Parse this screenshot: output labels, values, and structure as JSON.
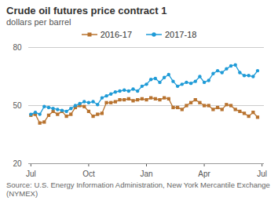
{
  "chart_data": {
    "type": "line",
    "title": "Crude oil futures price contract 1",
    "subtitle": "dollars per barrel",
    "caption": "Source: U.S. Energy Information Administration, New York Mercantile Exchange (NYMEX)",
    "x": [
      "Jul",
      null,
      null,
      null,
      null,
      null,
      null,
      null,
      null,
      null,
      null,
      null,
      null,
      "Oct",
      null,
      null,
      null,
      null,
      null,
      null,
      null,
      null,
      null,
      null,
      null,
      null,
      "Jan",
      null,
      null,
      null,
      null,
      null,
      null,
      null,
      null,
      null,
      null,
      null,
      null,
      "Apr",
      null,
      null,
      null,
      null,
      null,
      null,
      null,
      null,
      null,
      null,
      null,
      null,
      "Jul"
    ],
    "series": [
      {
        "name": "2016-17",
        "color": "#b8732f",
        "marker": "square",
        "line_style": "solid",
        "values": [
          45,
          45.5,
          41,
          41.5,
          45,
          47,
          45.5,
          47,
          44.5,
          45.5,
          49,
          50,
          49.5,
          47,
          44.5,
          45.5,
          46,
          51.5,
          51.5,
          52,
          53,
          53,
          53.5,
          52.5,
          53,
          53.5,
          53,
          54,
          53.5,
          53,
          54,
          53.5,
          49,
          49,
          48,
          50,
          51.5,
          53,
          51.5,
          50,
          50,
          48,
          49,
          48,
          50.5,
          50,
          48,
          47,
          46,
          44.5,
          46.5,
          44,
          null
        ]
      },
      {
        "name": "2017-18",
        "color": "#1f9bd7",
        "marker": "circle",
        "line_style": "solid",
        "values": [
          45.5,
          46.5,
          45.5,
          49.5,
          49,
          48.5,
          48,
          47.5,
          47,
          48.5,
          50,
          51,
          52,
          51.5,
          52,
          50.5,
          54,
          55,
          56,
          57,
          57.5,
          58,
          57.5,
          58.5,
          57.5,
          60,
          61,
          63.5,
          64,
          62,
          64.5,
          66,
          62.5,
          60,
          61,
          62,
          61.5,
          62.5,
          65,
          62,
          63,
          66.5,
          68,
          67,
          69,
          70.5,
          71,
          67,
          65.5,
          65.5,
          65,
          68,
          null
        ]
      }
    ],
    "ylim": [
      20,
      80
    ],
    "yticks": [
      20,
      50,
      80
    ],
    "grid": true,
    "legend": "top"
  }
}
